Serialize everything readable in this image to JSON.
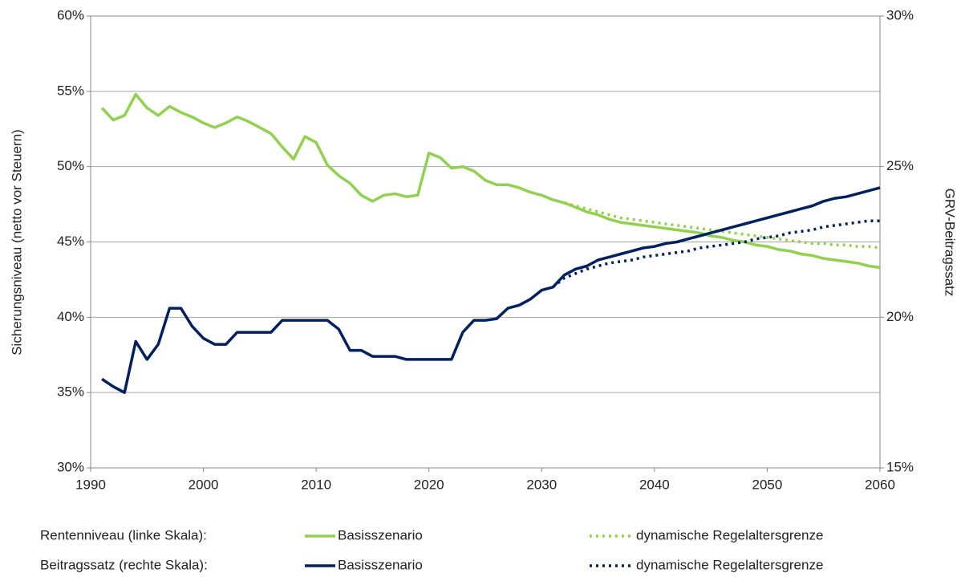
{
  "chart_data": {
    "type": "line",
    "ylabel": "Sicherungsniveau (netto vor Steuern)",
    "y2label": "GRV-Beitragssatz",
    "x": [
      1991,
      1992,
      1993,
      1994,
      1995,
      1996,
      1997,
      1998,
      1999,
      2000,
      2001,
      2002,
      2003,
      2004,
      2005,
      2006,
      2007,
      2008,
      2009,
      2010,
      2011,
      2012,
      2013,
      2014,
      2015,
      2016,
      2017,
      2018,
      2019,
      2020,
      2021,
      2022,
      2023,
      2024,
      2025,
      2026,
      2027,
      2028,
      2029,
      2030,
      2031,
      2032,
      2033,
      2034,
      2035,
      2036,
      2037,
      2038,
      2039,
      2040,
      2041,
      2042,
      2043,
      2044,
      2045,
      2046,
      2047,
      2048,
      2049,
      2050,
      2051,
      2052,
      2053,
      2054,
      2055,
      2056,
      2057,
      2058,
      2059,
      2060
    ],
    "xlim": [
      1990,
      2060
    ],
    "xticks": [
      1990,
      2000,
      2010,
      2020,
      2030,
      2040,
      2050,
      2060
    ],
    "ylim": [
      30,
      60
    ],
    "yticks": [
      {
        "value": 30,
        "label": "30%"
      },
      {
        "value": 35,
        "label": "35%"
      },
      {
        "value": 40,
        "label": "40%"
      },
      {
        "value": 45,
        "label": "45%"
      },
      {
        "value": 50,
        "label": "50%"
      },
      {
        "value": 55,
        "label": "55%"
      },
      {
        "value": 60,
        "label": "60%"
      }
    ],
    "y2lim": [
      15,
      30
    ],
    "y2ticks": [
      {
        "value": 15,
        "label": "15%"
      },
      {
        "value": 20,
        "label": "20%"
      },
      {
        "value": 25,
        "label": "25%"
      },
      {
        "value": 30,
        "label": "30%"
      }
    ],
    "grid": true,
    "legend_rows": [
      "Rentenniveau (linke Skala):",
      "Beitragssatz (rechte Skala):"
    ],
    "series": [
      {
        "name": "Basisszenario",
        "color": "#92d050",
        "dash": "solid",
        "axis": "y",
        "values": [
          53.9,
          53.1,
          53.4,
          54.8,
          53.9,
          53.4,
          54.0,
          53.6,
          53.3,
          52.9,
          52.6,
          52.9,
          53.3,
          53.0,
          52.6,
          52.2,
          51.3,
          50.5,
          52.0,
          51.6,
          50.1,
          49.4,
          48.9,
          48.1,
          47.7,
          48.1,
          48.2,
          48.0,
          48.1,
          50.9,
          50.6,
          49.9,
          50.0,
          49.7,
          49.1,
          48.8,
          48.8,
          48.6,
          48.3,
          48.1,
          47.8,
          47.6,
          47.3,
          47.0,
          46.8,
          46.5,
          46.3,
          46.2,
          46.1,
          46.0,
          45.9,
          45.8,
          45.7,
          45.6,
          45.4,
          45.3,
          45.1,
          45.0,
          44.8,
          44.7,
          44.5,
          44.4,
          44.2,
          44.1,
          43.9,
          43.8,
          43.7,
          43.6,
          43.4,
          43.3
        ]
      },
      {
        "name": "dynamische Regelaltersgrenze",
        "color": "#92d050",
        "dash": "dotted",
        "axis": "y",
        "values": [
          null,
          null,
          null,
          null,
          null,
          null,
          null,
          null,
          null,
          null,
          null,
          null,
          null,
          null,
          null,
          null,
          null,
          null,
          null,
          null,
          null,
          null,
          null,
          null,
          null,
          null,
          null,
          null,
          null,
          null,
          null,
          null,
          null,
          null,
          null,
          null,
          null,
          null,
          null,
          null,
          null,
          47.6,
          47.4,
          47.2,
          47.0,
          46.8,
          46.6,
          46.5,
          46.4,
          46.3,
          46.2,
          46.1,
          46.0,
          45.9,
          45.8,
          45.7,
          45.6,
          45.5,
          45.4,
          45.3,
          45.2,
          45.1,
          45.0,
          44.9,
          44.9,
          44.8,
          44.8,
          44.7,
          44.7,
          44.6
        ]
      },
      {
        "name": "Basisszenario",
        "color": "#002060",
        "dash": "solid",
        "axis": "y2",
        "values": [
          17.95,
          17.7,
          17.5,
          19.2,
          18.6,
          19.1,
          20.3,
          20.3,
          19.7,
          19.3,
          19.1,
          19.1,
          19.5,
          19.5,
          19.5,
          19.5,
          19.9,
          19.9,
          19.9,
          19.9,
          19.9,
          19.6,
          18.9,
          18.9,
          18.7,
          18.7,
          18.7,
          18.6,
          18.6,
          18.6,
          18.6,
          18.6,
          19.5,
          19.9,
          19.9,
          19.95,
          20.3,
          20.4,
          20.6,
          20.9,
          21.0,
          21.4,
          21.6,
          21.7,
          21.9,
          22.0,
          22.1,
          22.2,
          22.3,
          22.35,
          22.45,
          22.5,
          22.6,
          22.7,
          22.8,
          22.9,
          23.0,
          23.1,
          23.2,
          23.3,
          23.4,
          23.5,
          23.6,
          23.7,
          23.85,
          23.95,
          24.0,
          24.1,
          24.2,
          24.3
        ]
      },
      {
        "name": "dynamische Regelaltersgrenze",
        "color": "#002060",
        "dash": "dotted",
        "axis": "y2",
        "values": [
          null,
          null,
          null,
          null,
          null,
          null,
          null,
          null,
          null,
          null,
          null,
          null,
          null,
          null,
          null,
          null,
          null,
          null,
          null,
          null,
          null,
          null,
          null,
          null,
          null,
          null,
          null,
          null,
          null,
          null,
          null,
          null,
          null,
          null,
          null,
          null,
          null,
          null,
          null,
          null,
          21.0,
          21.3,
          21.45,
          21.6,
          21.7,
          21.8,
          21.85,
          21.9,
          22.0,
          22.05,
          22.1,
          22.15,
          22.2,
          22.3,
          22.35,
          22.4,
          22.45,
          22.5,
          22.6,
          22.65,
          22.7,
          22.8,
          22.85,
          22.9,
          23.0,
          23.05,
          23.1,
          23.15,
          23.2,
          23.2
        ]
      }
    ]
  }
}
